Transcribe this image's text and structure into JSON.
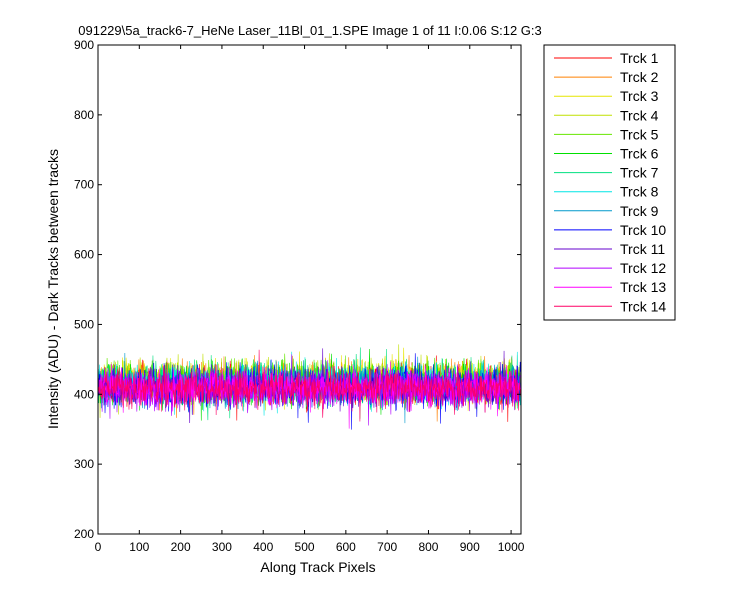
{
  "chart_data": {
    "type": "line",
    "title": "091229\\5a_track6-7_HeNe Laser_11Bl_01_1.SPE  Image 1 of 11  I:0.06  S:12  G:3",
    "xlabel": "Along Track Pixels",
    "ylabel": "Intensity (ADU) - Dark Tracks between tracks",
    "xlim": [
      0,
      1024
    ],
    "ylim": [
      200,
      900
    ],
    "xticks": [
      0,
      100,
      200,
      300,
      400,
      500,
      600,
      700,
      800,
      900,
      1000
    ],
    "yticks": [
      200,
      300,
      400,
      500,
      600,
      700,
      800,
      900
    ],
    "grid": false,
    "legend_position": "outside-top-right",
    "points_per_series": 1024,
    "series": [
      {
        "name": "Trck 1",
        "color": "#ff0000",
        "mean": 416,
        "noise": 14
      },
      {
        "name": "Trck 2",
        "color": "#ff8000",
        "mean": 418,
        "noise": 14
      },
      {
        "name": "Trck 3",
        "color": "#e6e600",
        "mean": 420,
        "noise": 14
      },
      {
        "name": "Trck 4",
        "color": "#c0e000",
        "mean": 419,
        "noise": 14
      },
      {
        "name": "Trck 5",
        "color": "#66e600",
        "mean": 417,
        "noise": 14
      },
      {
        "name": "Trck 6",
        "color": "#00e000",
        "mean": 416,
        "noise": 14
      },
      {
        "name": "Trck 7",
        "color": "#00e080",
        "mean": 415,
        "noise": 14
      },
      {
        "name": "Trck 8",
        "color": "#00e6e6",
        "mean": 414,
        "noise": 13
      },
      {
        "name": "Trck 9",
        "color": "#0099cc",
        "mean": 412,
        "noise": 13
      },
      {
        "name": "Trck 10",
        "color": "#0000ff",
        "mean": 410,
        "noise": 14
      },
      {
        "name": "Trck 11",
        "color": "#6600cc",
        "mean": 409,
        "noise": 13
      },
      {
        "name": "Trck 12",
        "color": "#b000ff",
        "mean": 408,
        "noise": 13
      },
      {
        "name": "Trck 13",
        "color": "#ff00ff",
        "mean": 410,
        "noise": 13
      },
      {
        "name": "Trck 14",
        "color": "#ff0066",
        "mean": 409,
        "noise": 13
      }
    ]
  }
}
